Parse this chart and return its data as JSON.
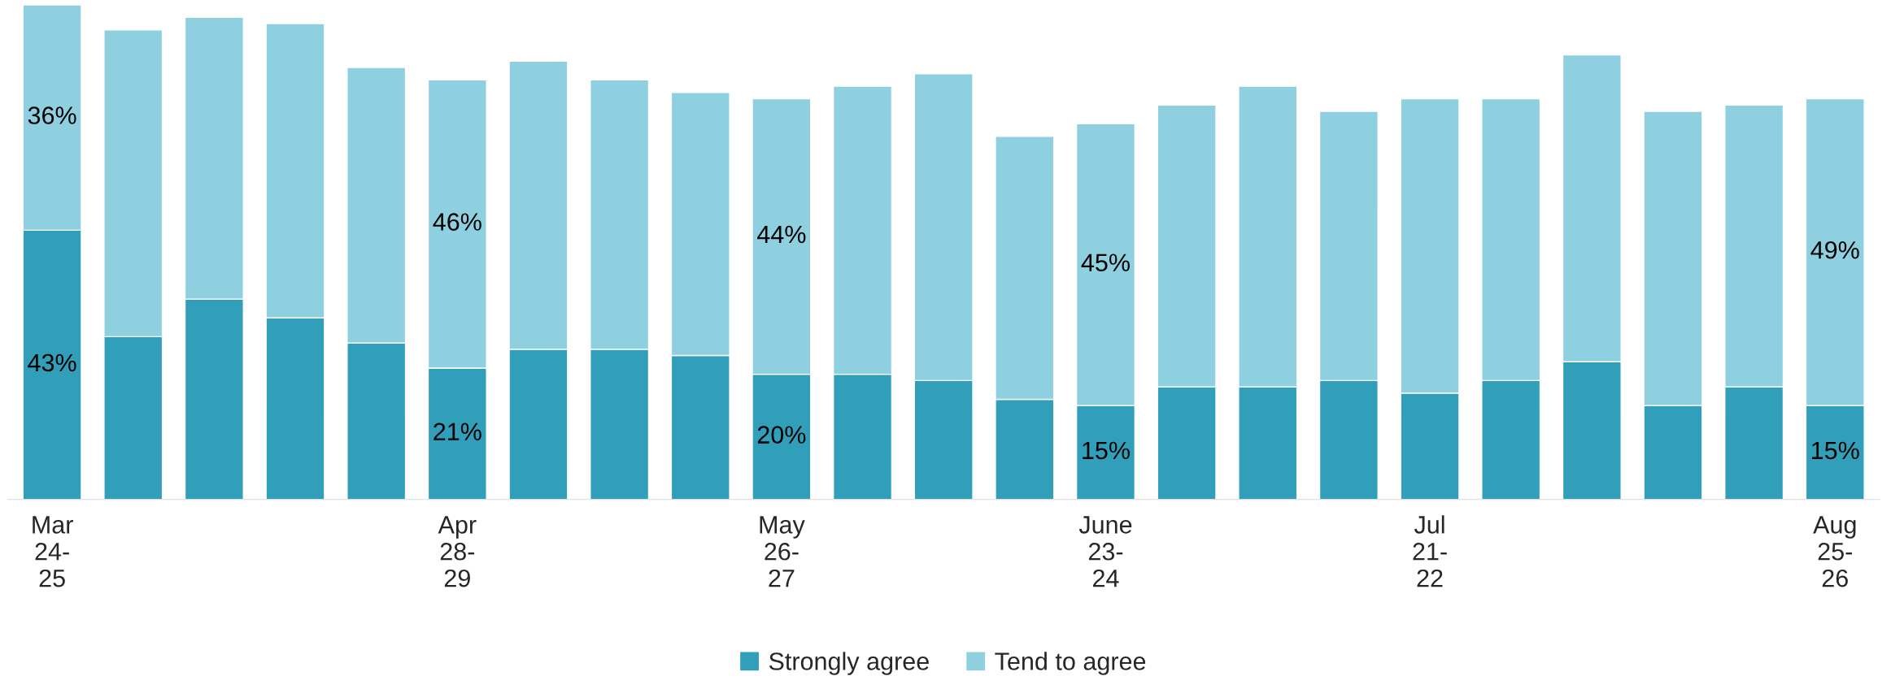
{
  "chart_data": {
    "type": "bar",
    "stacked": true,
    "legend": "bottom",
    "categories": [
      "Mar\n24-\n25",
      null,
      null,
      null,
      null,
      "Apr\n28-\n29",
      null,
      null,
      null,
      "May\n26-\n27",
      null,
      null,
      null,
      "June\n23-\n24",
      null,
      null,
      null,
      "Jul\n21-\n22",
      null,
      null,
      null,
      null,
      "Aug\n25-\n26"
    ],
    "series": [
      {
        "name": "Strongly agree",
        "color": "#319fba",
        "values": [
          43,
          26,
          32,
          29,
          25,
          21,
          24,
          24,
          23,
          20,
          20,
          19,
          16,
          15,
          18,
          18,
          19,
          17,
          19,
          22,
          15,
          18,
          15
        ],
        "value_labels": [
          "43%",
          null,
          null,
          null,
          null,
          "21%",
          null,
          null,
          null,
          "20%",
          null,
          null,
          null,
          "15%",
          null,
          null,
          null,
          null,
          null,
          null,
          null,
          null,
          "15%"
        ]
      },
      {
        "name": "Tend to agree",
        "color": "#8ed0e0",
        "values": [
          36,
          49,
          45,
          47,
          44,
          46,
          46,
          43,
          42,
          44,
          46,
          49,
          42,
          45,
          45,
          48,
          43,
          47,
          45,
          49,
          47,
          45,
          49
        ],
        "value_labels": [
          "36%",
          null,
          null,
          null,
          null,
          "46%",
          null,
          null,
          null,
          "44%",
          null,
          null,
          null,
          "45%",
          null,
          null,
          null,
          null,
          null,
          null,
          null,
          null,
          "49%"
        ]
      }
    ]
  }
}
